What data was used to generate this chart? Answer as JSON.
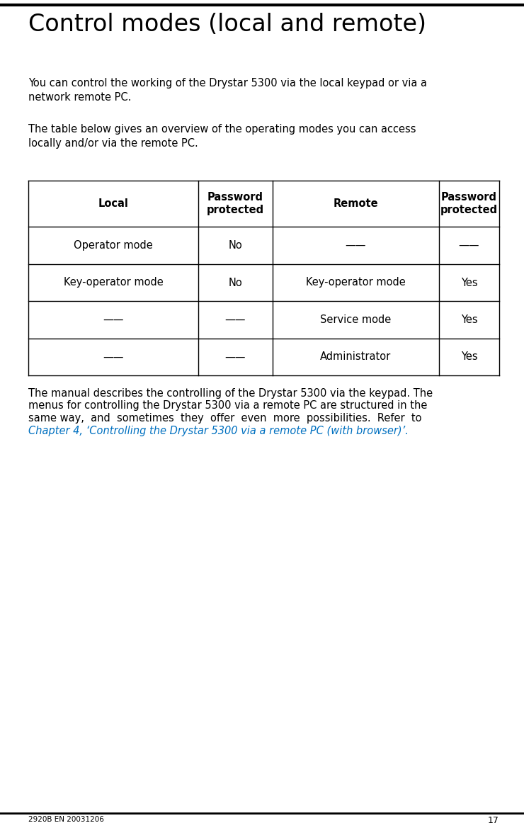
{
  "title": "Control modes (local and remote)",
  "title_fontsize": 24,
  "top_line_color": "#000000",
  "para1": "You can control the working of the Drystar 5300 via the local keypad or via a\nnetwork remote PC.",
  "para2": "The table below gives an overview of the operating modes you can access\nlocally and/or via the remote PC.",
  "para3_line1": "The manual describes the controlling of the Drystar 5300 via the keypad. The",
  "para3_line2": "menus for controlling the Drystar 5300 via a remote PC are structured in the",
  "para3_line3": "same way,  and  sometimes  they  offer  even  more  possibilities.  Refer  to",
  "para3_link": "Chapter 4, ‘Controlling the Drystar 5300 via a remote PC (with browser)’.",
  "link_color": "#0070C0",
  "body_fontsize": 10.5,
  "footer_text": "2920B EN 20031206",
  "footer_page": "17",
  "table_headers": [
    "Local",
    "Password\nprotected",
    "Remote",
    "Password\nprotected"
  ],
  "table_rows": [
    [
      "Operator mode",
      "No",
      "——",
      "——"
    ],
    [
      "Key-operator mode",
      "No",
      "Key-operator mode",
      "Yes"
    ],
    [
      "——",
      "——",
      "Service mode",
      "Yes"
    ],
    [
      "——",
      "——",
      "Administrator",
      "Yes"
    ]
  ],
  "text_color": "#000000",
  "bg_color": "#ffffff"
}
